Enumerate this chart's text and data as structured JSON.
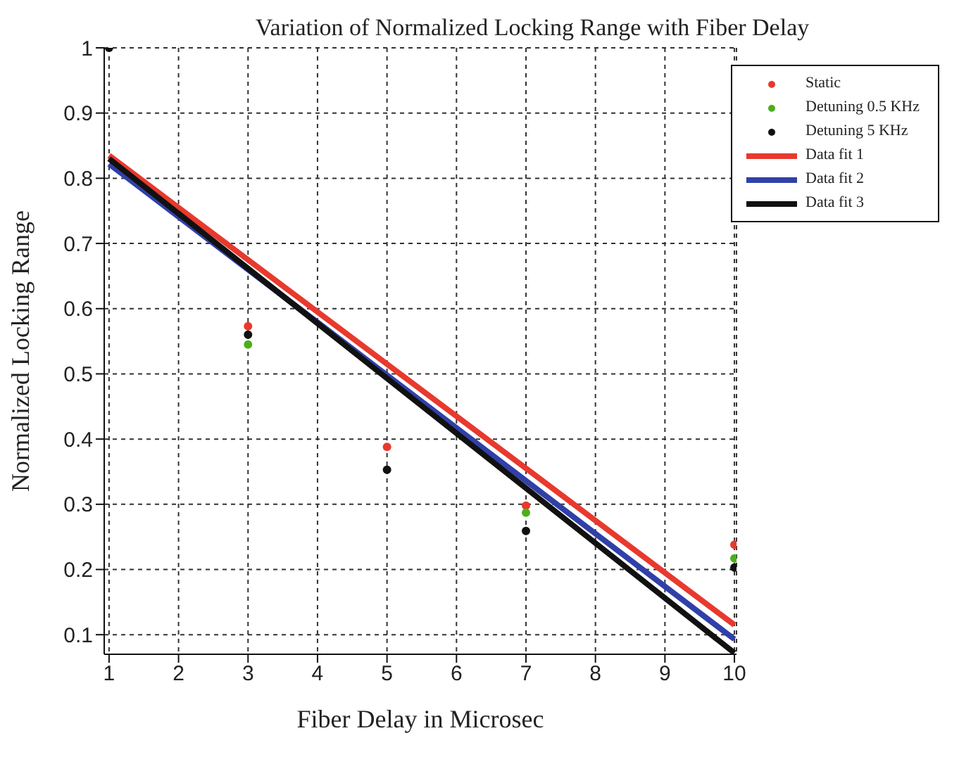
{
  "chart_data": {
    "type": "scatter",
    "title": "Variation of Normalized Locking Range with Fiber Delay",
    "xlabel": "Fiber Delay in Microsec",
    "ylabel": "Normalized Locking Range",
    "xlim": [
      0.93,
      10.03
    ],
    "xticks": [
      1,
      2,
      3,
      4,
      5,
      6,
      7,
      8,
      9,
      10
    ],
    "ylim": [
      0.07,
      1
    ],
    "yticks": [
      0.1,
      0.2,
      0.3,
      0.4,
      0.5,
      0.6,
      0.7,
      0.8,
      0.9,
      1
    ],
    "grid": true,
    "legend": "top right",
    "series": [
      {
        "name": "Static",
        "marker": "circle",
        "color": "#e8392e",
        "x": [
          3,
          5,
          7,
          10
        ],
        "values": [
          0.573,
          0.388,
          0.298,
          0.238
        ]
      },
      {
        "name": "Detuning 0.5 KHz",
        "marker": "circle",
        "color": "#4caf1a",
        "x": [
          3,
          7,
          10
        ],
        "values": [
          0.545,
          0.287,
          0.217
        ]
      },
      {
        "name": "Detuning 5 KHz",
        "marker": "circle",
        "color": "#111111",
        "x": [
          1,
          3,
          5,
          7,
          10
        ],
        "values": [
          1,
          0.56,
          0.353,
          0.259,
          0.203
        ]
      },
      {
        "name": "Data fit 1",
        "type": "line",
        "marker": "none",
        "line_style": "solid",
        "color": "#e8392e",
        "x": [
          1,
          10
        ],
        "values": [
          0.835,
          0.115
        ]
      },
      {
        "name": "Data fit 2",
        "type": "line",
        "marker": "none",
        "line_style": "solid",
        "color": "#3040a8",
        "x": [
          1,
          10
        ],
        "values": [
          0.822,
          0.093
        ]
      },
      {
        "name": "Data fit 3",
        "type": "line",
        "marker": "none",
        "line_style": "solid",
        "color": "#111111",
        "x": [
          1,
          10
        ],
        "values": [
          0.83,
          0.072
        ]
      }
    ]
  }
}
